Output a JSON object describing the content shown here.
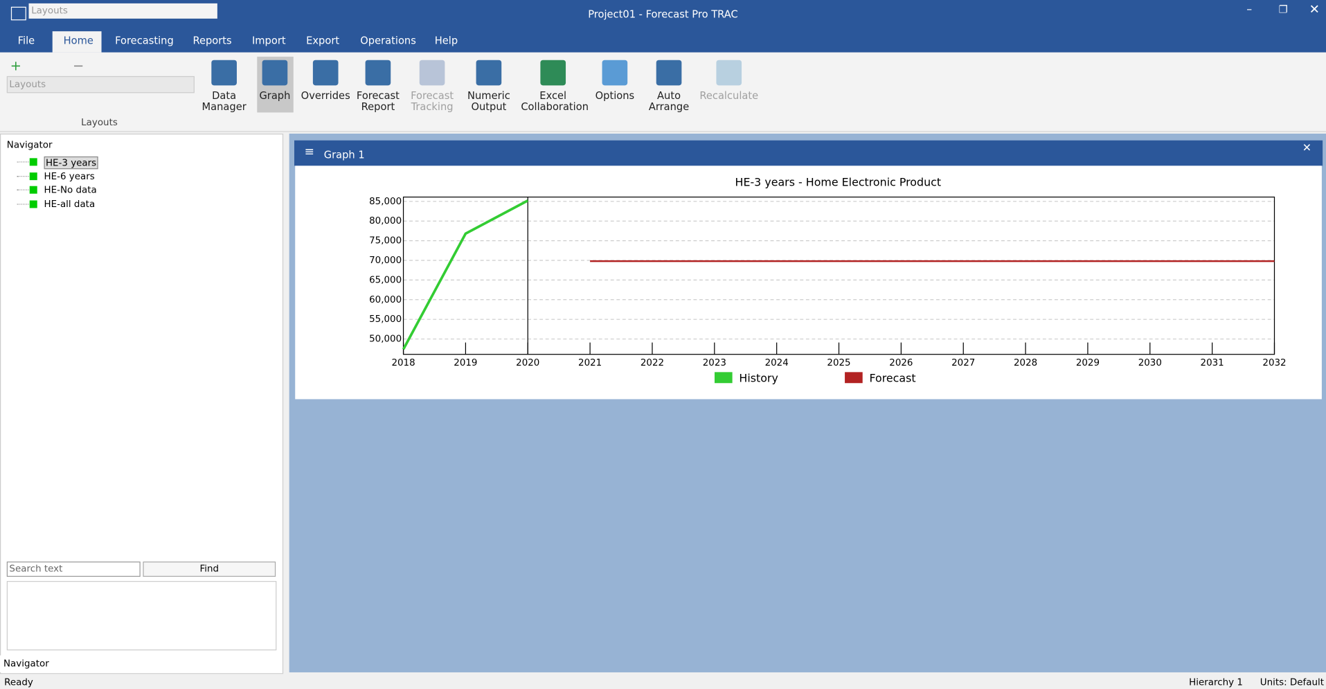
{
  "window": {
    "title": "Project01 - Forecast Pro TRAC",
    "layout_combo": "Layouts"
  },
  "menu": [
    "File",
    "Home",
    "Forecasting",
    "Reports",
    "Import",
    "Export",
    "Operations",
    "Help"
  ],
  "ribbon": {
    "layouts_combo": "Layouts",
    "group_label": "Layouts",
    "buttons": [
      {
        "lines": [
          "Data",
          "Manager"
        ],
        "enabled": true
      },
      {
        "lines": [
          "Graph"
        ],
        "enabled": true
      },
      {
        "lines": [
          "Overrides"
        ],
        "enabled": true
      },
      {
        "lines": [
          "Forecast",
          "Report"
        ],
        "enabled": true
      },
      {
        "lines": [
          "Forecast",
          "Tracking"
        ],
        "enabled": false
      },
      {
        "lines": [
          "Numeric",
          "Output"
        ],
        "enabled": true
      },
      {
        "lines": [
          "Excel",
          "Collaboration"
        ],
        "enabled": true
      },
      {
        "lines": [
          "Options"
        ],
        "enabled": true
      },
      {
        "lines": [
          "Auto",
          "Arrange"
        ],
        "enabled": true
      },
      {
        "lines": [
          "Recalculate"
        ],
        "enabled": false
      }
    ]
  },
  "navigator": {
    "title": "Navigator",
    "items": [
      "HE-3 years",
      "HE-6 years",
      "HE-No data",
      "HE-all data"
    ],
    "search_placeholder": "Search text",
    "find": "Find",
    "tab": "Navigator"
  },
  "graph_window": {
    "title": "Graph 1"
  },
  "chart_data": {
    "type": "line",
    "title": "HE-3 years - Home Electronic Product",
    "series": [
      {
        "name": "History",
        "color": "#33cc33",
        "x": [
          2018,
          2019,
          2020
        ],
        "values": [
          47400,
          76800,
          85200
        ]
      },
      {
        "name": "Forecast",
        "color": "#b22222",
        "x": [
          2021,
          2032
        ],
        "values": [
          69800,
          69800
        ]
      }
    ],
    "xlim": [
      2018,
      2032
    ],
    "xticks": [
      2018,
      2019,
      2020,
      2021,
      2022,
      2023,
      2024,
      2025,
      2026,
      2027,
      2028,
      2029,
      2030,
      2031,
      2032
    ],
    "ylim": [
      46100,
      86100
    ],
    "yticks": [
      {
        "value": 50000,
        "label": "50,000"
      },
      {
        "value": 55000,
        "label": "55,000"
      },
      {
        "value": 60000,
        "label": "60,000"
      },
      {
        "value": 65000,
        "label": "65,000"
      },
      {
        "value": 70000,
        "label": "70,000"
      },
      {
        "value": 75000,
        "label": "75,000"
      },
      {
        "value": 80000,
        "label": "80,000"
      },
      {
        "value": 85000,
        "label": "85,000"
      }
    ],
    "grid": true
  },
  "status": {
    "left": "Ready",
    "hierarchy": "Hierarchy 1",
    "units": "Units: Default"
  }
}
